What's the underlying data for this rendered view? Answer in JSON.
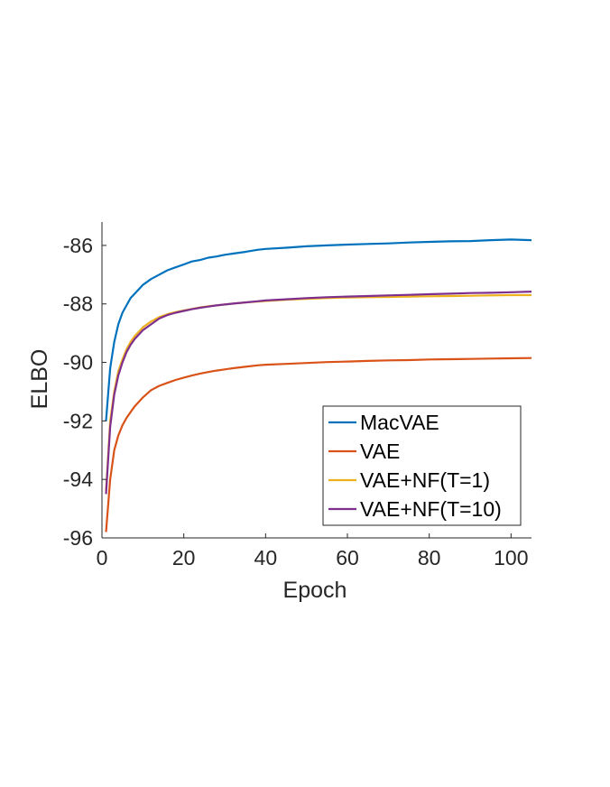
{
  "chart_data": {
    "type": "line",
    "title": "",
    "xlabel": "Epoch",
    "ylabel": "ELBO",
    "xlim": [
      0,
      105
    ],
    "ylim": [
      -96,
      -85.2
    ],
    "xticks": [
      0,
      20,
      40,
      60,
      80,
      100
    ],
    "yticks": [
      -96,
      -94,
      -92,
      -90,
      -88,
      -86
    ],
    "xtick_labels": [
      "0",
      "20",
      "40",
      "60",
      "80",
      "100"
    ],
    "ytick_labels": [
      "-96",
      "-94",
      "-92",
      "-90",
      "-88",
      "-86"
    ],
    "grid": false,
    "legend_position": "bottom-right",
    "series": [
      {
        "name": "MacVAE",
        "color": "#0072BD",
        "x": [
          1,
          2,
          3,
          4,
          5,
          6,
          7,
          8,
          10,
          12,
          14,
          16,
          18,
          20,
          22,
          24,
          26,
          28,
          30,
          32,
          35,
          38,
          40,
          45,
          50,
          55,
          60,
          65,
          70,
          75,
          80,
          85,
          90,
          95,
          100,
          105
        ],
        "y": [
          -92.0,
          -90.2,
          -89.3,
          -88.7,
          -88.3,
          -88.05,
          -87.8,
          -87.65,
          -87.35,
          -87.15,
          -87.0,
          -86.85,
          -86.75,
          -86.65,
          -86.55,
          -86.5,
          -86.42,
          -86.38,
          -86.32,
          -86.28,
          -86.22,
          -86.15,
          -86.12,
          -86.08,
          -86.03,
          -86.0,
          -85.97,
          -85.95,
          -85.93,
          -85.9,
          -85.88,
          -85.86,
          -85.85,
          -85.82,
          -85.8,
          -85.82
        ]
      },
      {
        "name": "VAE",
        "color": "#D95319",
        "x": [
          1,
          2,
          3,
          4,
          5,
          6,
          7,
          8,
          10,
          12,
          14,
          16,
          18,
          20,
          22,
          24,
          26,
          28,
          30,
          32,
          35,
          38,
          40,
          45,
          50,
          55,
          60,
          65,
          70,
          75,
          80,
          85,
          90,
          95,
          100,
          105
        ],
        "y": [
          -95.8,
          -94.0,
          -93.0,
          -92.5,
          -92.15,
          -91.9,
          -91.7,
          -91.5,
          -91.2,
          -90.95,
          -90.8,
          -90.7,
          -90.6,
          -90.52,
          -90.45,
          -90.38,
          -90.33,
          -90.28,
          -90.24,
          -90.2,
          -90.15,
          -90.1,
          -90.08,
          -90.05,
          -90.02,
          -89.99,
          -89.97,
          -89.95,
          -89.93,
          -89.92,
          -89.9,
          -89.89,
          -89.88,
          -89.87,
          -89.86,
          -89.85
        ]
      },
      {
        "name": "VAE+NF(T=1)",
        "color": "#EDB120",
        "x": [
          1,
          2,
          3,
          4,
          5,
          6,
          7,
          8,
          10,
          12,
          14,
          16,
          18,
          20,
          22,
          24,
          26,
          28,
          30,
          32,
          35,
          38,
          40,
          45,
          50,
          55,
          60,
          65,
          70,
          75,
          80,
          85,
          90,
          95,
          100,
          105
        ],
        "y": [
          -94.4,
          -92.0,
          -91.0,
          -90.3,
          -89.9,
          -89.55,
          -89.3,
          -89.1,
          -88.8,
          -88.6,
          -88.45,
          -88.35,
          -88.28,
          -88.22,
          -88.17,
          -88.12,
          -88.08,
          -88.05,
          -88.02,
          -87.99,
          -87.95,
          -87.92,
          -87.9,
          -87.86,
          -87.83,
          -87.8,
          -87.78,
          -87.77,
          -87.76,
          -87.75,
          -87.74,
          -87.73,
          -87.72,
          -87.71,
          -87.7,
          -87.7
        ]
      },
      {
        "name": "VAE+NF(T=10)",
        "color": "#7E2F8E",
        "x": [
          1,
          2,
          3,
          4,
          5,
          6,
          7,
          8,
          10,
          12,
          14,
          16,
          18,
          20,
          22,
          24,
          26,
          28,
          30,
          32,
          35,
          38,
          40,
          45,
          50,
          55,
          60,
          65,
          70,
          75,
          80,
          85,
          90,
          95,
          100,
          105
        ],
        "y": [
          -94.5,
          -92.2,
          -91.1,
          -90.45,
          -90.0,
          -89.65,
          -89.4,
          -89.2,
          -88.9,
          -88.7,
          -88.5,
          -88.38,
          -88.3,
          -88.24,
          -88.18,
          -88.13,
          -88.09,
          -88.05,
          -88.02,
          -87.99,
          -87.95,
          -87.91,
          -87.88,
          -87.84,
          -87.8,
          -87.77,
          -87.75,
          -87.73,
          -87.71,
          -87.69,
          -87.67,
          -87.65,
          -87.63,
          -87.62,
          -87.6,
          -87.58
        ]
      }
    ]
  }
}
